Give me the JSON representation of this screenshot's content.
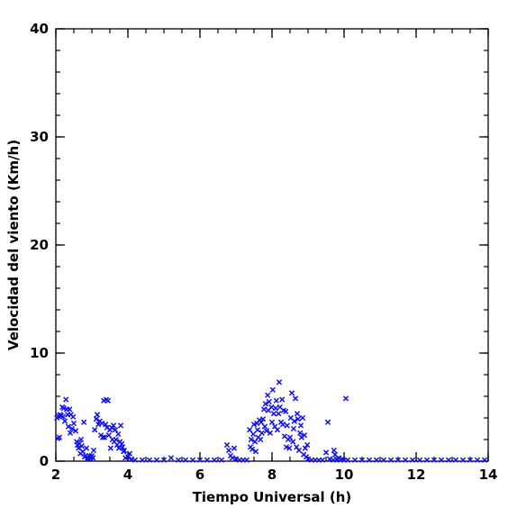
{
  "chart_data": {
    "type": "scatter",
    "xlabel": "Tiempo Universal (h)",
    "ylabel": "Velocidad del viento (Km/h)",
    "xlim": [
      2,
      14
    ],
    "ylim": [
      0,
      40
    ],
    "xticks": [
      2,
      4,
      6,
      8,
      10,
      12,
      14
    ],
    "xtick_labels": [
      "2",
      "4",
      "6",
      "8",
      "10",
      "12",
      "14"
    ],
    "yticks": [
      0,
      10,
      20,
      30,
      40
    ],
    "ytick_labels": [
      "0",
      "10",
      "20",
      "30",
      "40"
    ],
    "x_minor_step": 0.5,
    "y_minor_step": 2,
    "grid": false,
    "marker": "x",
    "marker_color": "#1010ee",
    "axis_color": "#000000",
    "series": [
      {
        "points": [
          [
            2.03,
            4.0
          ],
          [
            2.05,
            2.1
          ],
          [
            2.07,
            4.2
          ],
          [
            2.1,
            2.2
          ],
          [
            2.12,
            4.3
          ],
          [
            2.15,
            4.2
          ],
          [
            2.18,
            5.0
          ],
          [
            2.2,
            4.1
          ],
          [
            2.22,
            4.9
          ],
          [
            2.25,
            3.7
          ],
          [
            2.28,
            5.7
          ],
          [
            2.3,
            4.8
          ],
          [
            2.33,
            4.3
          ],
          [
            2.35,
            3.2
          ],
          [
            2.38,
            4.8
          ],
          [
            2.4,
            2.6
          ],
          [
            2.42,
            4.3
          ],
          [
            2.45,
            3.0
          ],
          [
            2.48,
            4.1
          ],
          [
            2.5,
            3.5
          ],
          [
            2.55,
            2.8
          ],
          [
            2.58,
            1.8
          ],
          [
            2.6,
            1.5
          ],
          [
            2.63,
            1.2
          ],
          [
            2.65,
            1.6
          ],
          [
            2.68,
            0.7
          ],
          [
            2.7,
            2.0
          ],
          [
            2.72,
            1.4
          ],
          [
            2.75,
            0.9
          ],
          [
            2.78,
            3.6
          ],
          [
            2.8,
            0.4
          ],
          [
            2.83,
            0.5
          ],
          [
            2.85,
            1.2
          ],
          [
            2.88,
            0.3
          ],
          [
            2.9,
            0.2
          ],
          [
            2.93,
            0.5
          ],
          [
            2.95,
            0.3
          ],
          [
            2.98,
            0.4
          ],
          [
            3.0,
            0.5
          ],
          [
            3.03,
            0.3
          ],
          [
            3.05,
            1.0
          ],
          [
            3.08,
            2.9
          ],
          [
            3.12,
            3.9
          ],
          [
            3.15,
            4.3
          ],
          [
            3.18,
            3.4
          ],
          [
            3.22,
            3.7
          ],
          [
            3.25,
            2.4
          ],
          [
            3.28,
            3.5
          ],
          [
            3.3,
            2.2
          ],
          [
            3.33,
            5.6
          ],
          [
            3.35,
            2.2
          ],
          [
            3.38,
            3.4
          ],
          [
            3.4,
            5.7
          ],
          [
            3.42,
            3.1
          ],
          [
            3.45,
            5.6
          ],
          [
            3.47,
            2.4
          ],
          [
            3.5,
            2.9
          ],
          [
            3.52,
            1.2
          ],
          [
            3.55,
            3.1
          ],
          [
            3.57,
            2.0
          ],
          [
            3.6,
            3.3
          ],
          [
            3.62,
            1.8
          ],
          [
            3.65,
            2.9
          ],
          [
            3.67,
            2.0
          ],
          [
            3.7,
            1.5
          ],
          [
            3.73,
            2.5
          ],
          [
            3.75,
            1.2
          ],
          [
            3.78,
            1.8
          ],
          [
            3.8,
            3.3
          ],
          [
            3.83,
            1.6
          ],
          [
            3.85,
            1.3
          ],
          [
            3.88,
            0.9
          ],
          [
            3.9,
            1.0
          ],
          [
            3.93,
            0.3
          ],
          [
            4.0,
            0.4
          ],
          [
            4.05,
            0.7
          ],
          [
            4.1,
            0.2
          ],
          [
            4.2,
            0.1
          ],
          [
            4.4,
            0.1
          ],
          [
            4.6,
            0.1
          ],
          [
            4.8,
            0.1
          ],
          [
            5.0,
            0.1
          ],
          [
            5.2,
            0.3
          ],
          [
            5.4,
            0.1
          ],
          [
            5.6,
            0.1
          ],
          [
            5.8,
            0.1
          ],
          [
            6.0,
            0.1
          ],
          [
            6.2,
            0.1
          ],
          [
            6.4,
            0.1
          ],
          [
            6.6,
            0.1
          ],
          [
            6.75,
            1.5
          ],
          [
            6.8,
            1.0
          ],
          [
            6.85,
            0.5
          ],
          [
            6.9,
            0.3
          ],
          [
            6.95,
            1.2
          ],
          [
            7.0,
            0.2
          ],
          [
            7.1,
            0.1
          ],
          [
            7.2,
            0.1
          ],
          [
            7.3,
            0.1
          ],
          [
            7.38,
            2.9
          ],
          [
            7.4,
            1.3
          ],
          [
            7.42,
            2.0
          ],
          [
            7.45,
            1.1
          ],
          [
            7.48,
            2.5
          ],
          [
            7.5,
            3.4
          ],
          [
            7.53,
            1.8
          ],
          [
            7.55,
            0.9
          ],
          [
            7.58,
            3.5
          ],
          [
            7.6,
            2.9
          ],
          [
            7.62,
            2.2
          ],
          [
            7.65,
            3.8
          ],
          [
            7.68,
            2.0
          ],
          [
            7.7,
            3.6
          ],
          [
            7.72,
            2.6
          ],
          [
            7.75,
            3.9
          ],
          [
            7.78,
            4.8
          ],
          [
            7.8,
            3.2
          ],
          [
            7.82,
            5.3
          ],
          [
            7.85,
            2.8
          ],
          [
            7.88,
            6.1
          ],
          [
            7.9,
            4.7
          ],
          [
            7.92,
            5.5
          ],
          [
            7.95,
            2.6
          ],
          [
            7.98,
            5.0
          ],
          [
            8.0,
            3.6
          ],
          [
            8.02,
            6.6
          ],
          [
            8.05,
            4.4
          ],
          [
            8.08,
            3.2
          ],
          [
            8.1,
            4.9
          ],
          [
            8.12,
            5.6
          ],
          [
            8.15,
            2.9
          ],
          [
            8.18,
            4.4
          ],
          [
            8.2,
            7.3
          ],
          [
            8.22,
            5.0
          ],
          [
            8.25,
            3.6
          ],
          [
            8.28,
            5.7
          ],
          [
            8.3,
            3.4
          ],
          [
            8.32,
            4.7
          ],
          [
            8.35,
            2.3
          ],
          [
            8.38,
            4.6
          ],
          [
            8.4,
            1.3
          ],
          [
            8.42,
            3.3
          ],
          [
            8.45,
            2.0
          ],
          [
            8.48,
            1.2
          ],
          [
            8.5,
            2.2
          ],
          [
            8.52,
            4.0
          ],
          [
            8.55,
            6.3
          ],
          [
            8.58,
            1.8
          ],
          [
            8.6,
            3.0
          ],
          [
            8.62,
            3.7
          ],
          [
            8.65,
            5.8
          ],
          [
            8.68,
            1.3
          ],
          [
            8.7,
            4.4
          ],
          [
            8.72,
            3.9
          ],
          [
            8.75,
            1.0
          ],
          [
            8.78,
            2.6
          ],
          [
            8.8,
            3.3
          ],
          [
            8.82,
            2.2
          ],
          [
            8.85,
            4.0
          ],
          [
            8.88,
            0.6
          ],
          [
            8.9,
            2.4
          ],
          [
            8.92,
            1.2
          ],
          [
            8.95,
            0.4
          ],
          [
            8.98,
            1.5
          ],
          [
            9.0,
            0.2
          ],
          [
            9.1,
            0.1
          ],
          [
            9.2,
            0.1
          ],
          [
            9.3,
            0.1
          ],
          [
            9.4,
            0.1
          ],
          [
            9.5,
            0.8
          ],
          [
            9.55,
            3.6
          ],
          [
            9.6,
            0.2
          ],
          [
            9.7,
            0.1
          ],
          [
            9.72,
            1.0
          ],
          [
            9.75,
            0.6
          ],
          [
            9.8,
            0.2
          ],
          [
            9.85,
            0.3
          ],
          [
            9.9,
            0.1
          ],
          [
            9.95,
            0.2
          ],
          [
            10.0,
            0.1
          ],
          [
            10.05,
            5.8
          ],
          [
            10.1,
            0.1
          ],
          [
            10.3,
            0.1
          ],
          [
            10.5,
            0.1
          ],
          [
            10.7,
            0.1
          ],
          [
            10.9,
            0.1
          ],
          [
            11.1,
            0.1
          ],
          [
            11.3,
            0.1
          ],
          [
            11.5,
            0.1
          ],
          [
            11.7,
            0.1
          ],
          [
            11.9,
            0.1
          ],
          [
            12.1,
            0.1
          ],
          [
            12.3,
            0.1
          ],
          [
            12.5,
            0.1
          ],
          [
            12.7,
            0.1
          ],
          [
            12.9,
            0.1
          ],
          [
            13.1,
            0.1
          ],
          [
            13.3,
            0.1
          ],
          [
            13.5,
            0.1
          ],
          [
            13.7,
            0.1
          ],
          [
            13.9,
            0.1
          ]
        ]
      }
    ]
  }
}
